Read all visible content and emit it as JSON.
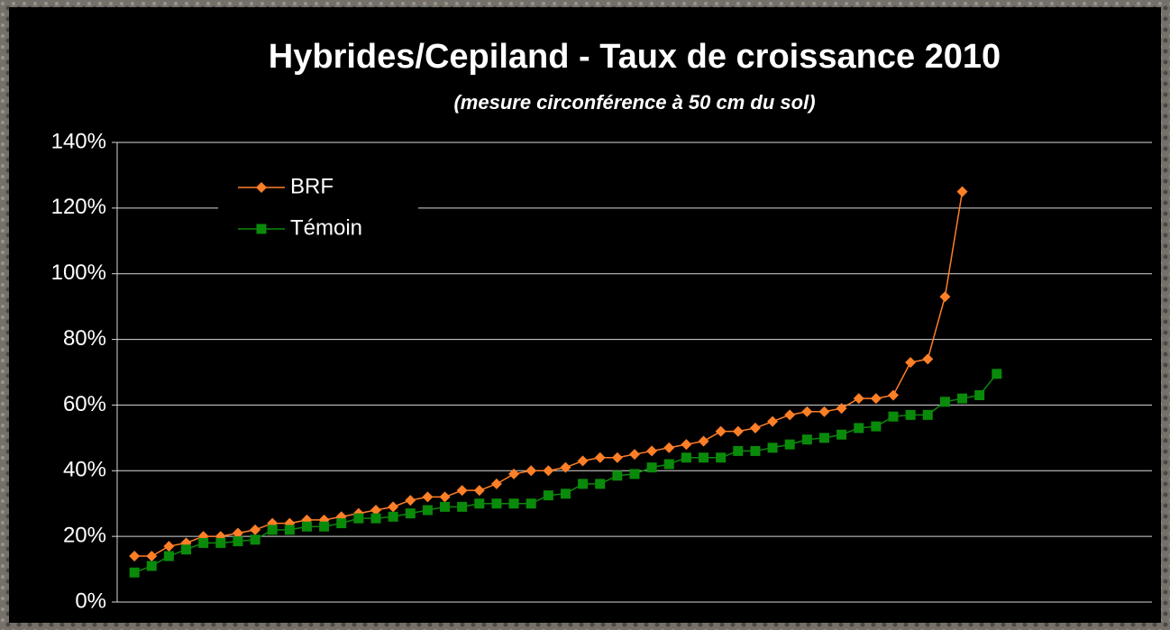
{
  "chart_data": {
    "type": "line",
    "title": "Hybrides/Cepiland - Taux de croissance 2010",
    "subtitle": "(mesure circonférence à 50 cm du sol)",
    "xlim": [
      0,
      60
    ],
    "ylim": [
      0,
      140
    ],
    "yticks": [
      {
        "value": 0,
        "label": "0%"
      },
      {
        "value": 20,
        "label": "20%"
      },
      {
        "value": 40,
        "label": "40%"
      },
      {
        "value": 60,
        "label": "60%"
      },
      {
        "value": 80,
        "label": "80%"
      },
      {
        "value": 100,
        "label": "100%"
      },
      {
        "value": 120,
        "label": "120%"
      },
      {
        "value": 140,
        "label": "140%"
      }
    ],
    "grid": true,
    "legend": "upper-left",
    "series": [
      {
        "name": "BRF",
        "color": "#ff7f27",
        "marker": "diamond",
        "x": [
          1,
          2,
          3,
          4,
          5,
          6,
          7,
          8,
          9,
          10,
          11,
          12,
          13,
          14,
          15,
          16,
          17,
          18,
          19,
          20,
          21,
          22,
          23,
          24,
          25,
          26,
          27,
          28,
          29,
          30,
          31,
          32,
          33,
          34,
          35,
          36,
          37,
          38,
          39,
          40,
          41,
          42,
          43,
          44,
          45,
          46,
          47,
          48,
          49
        ],
        "values": [
          14,
          14,
          17,
          18,
          20,
          20,
          21,
          22,
          24,
          24,
          25,
          25,
          26,
          27,
          28,
          29,
          31,
          32,
          32,
          34,
          34,
          36,
          39,
          40,
          40,
          41,
          43,
          44,
          44,
          45,
          46,
          47,
          48,
          49,
          52,
          52,
          53,
          55,
          57,
          58,
          58,
          59,
          62,
          62,
          63,
          73,
          74,
          93,
          125
        ]
      },
      {
        "name": "Témoin",
        "color": "#0a8a0a",
        "marker": "square",
        "x": [
          1,
          2,
          3,
          4,
          5,
          6,
          7,
          8,
          9,
          10,
          11,
          12,
          13,
          14,
          15,
          16,
          17,
          18,
          19,
          20,
          21,
          22,
          23,
          24,
          25,
          26,
          27,
          28,
          29,
          30,
          31,
          32,
          33,
          34,
          35,
          36,
          37,
          38,
          39,
          40,
          41,
          42,
          43,
          44,
          45,
          46,
          47,
          48,
          49,
          50,
          51
        ],
        "values": [
          9,
          11,
          14,
          16,
          18,
          18,
          18.5,
          19,
          22,
          22,
          23,
          23,
          24,
          25.5,
          25.5,
          26,
          27,
          28,
          29,
          29,
          30,
          30,
          30,
          30,
          32.5,
          33,
          36,
          36,
          38.5,
          39,
          41,
          42,
          44,
          44,
          44,
          46,
          46,
          47,
          48,
          49.5,
          50,
          51,
          53,
          53.5,
          56.5,
          57,
          57,
          61,
          62,
          63,
          69.5
        ]
      }
    ]
  }
}
